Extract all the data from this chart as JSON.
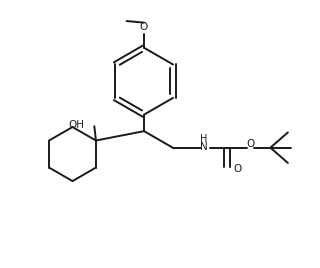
{
  "background_color": "#ffffff",
  "line_color": "#1a1a1a",
  "line_width": 1.4,
  "figsize": [
    3.2,
    2.68
  ],
  "dpi": 100,
  "xlim": [
    0,
    10
  ],
  "ylim": [
    0,
    8.38
  ]
}
